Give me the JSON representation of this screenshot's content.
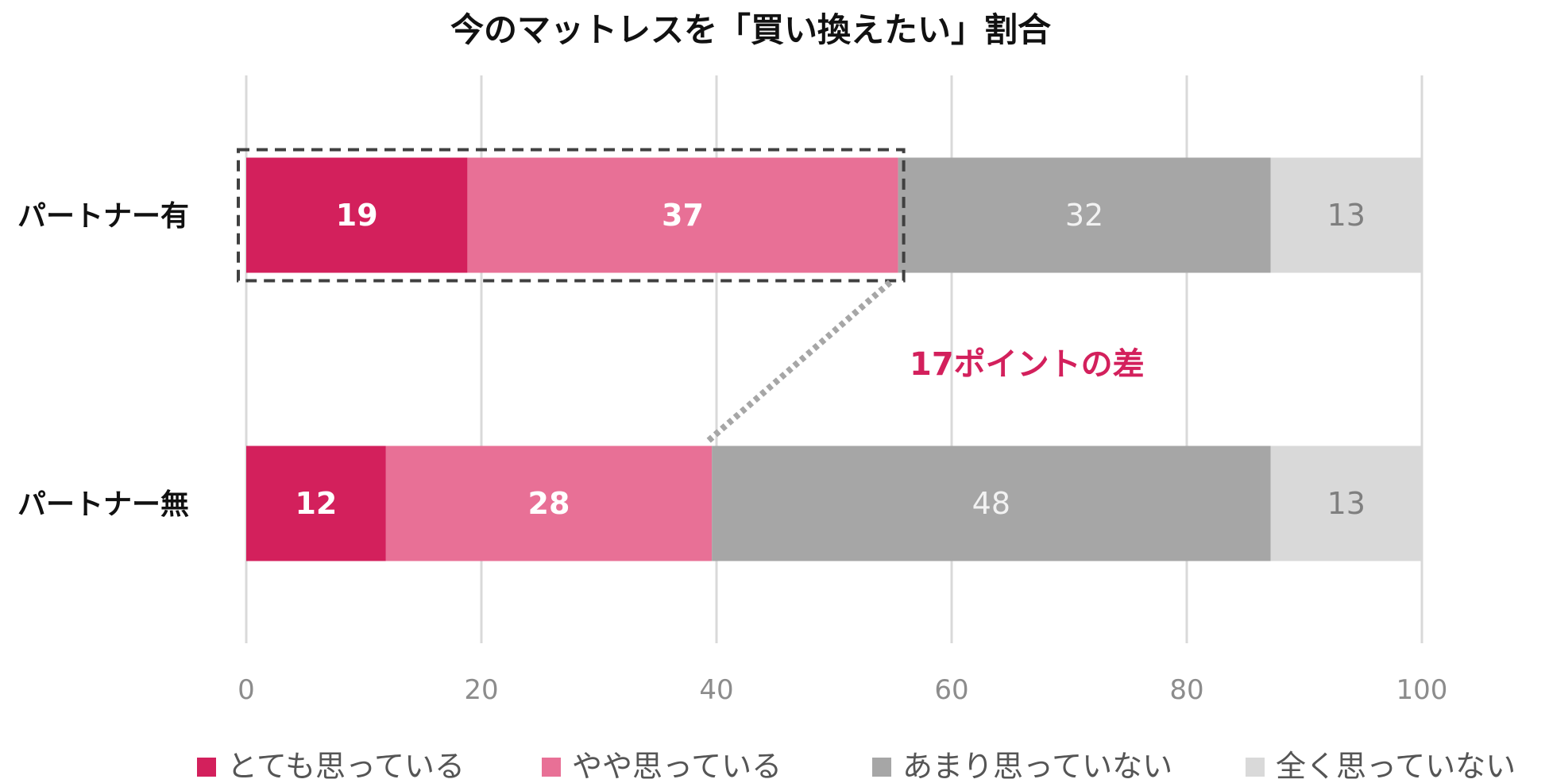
{
  "chart_data": {
    "type": "bar",
    "orientation": "horizontal",
    "stacked": true,
    "title": "今のマットレスを「買い換えたい」割合",
    "categories": [
      "パートナー有",
      "パートナー無"
    ],
    "series": [
      {
        "name": "とても思っている",
        "color": "#d3205c",
        "values": [
          19,
          12
        ]
      },
      {
        "name": "やや思っている",
        "color": "#e87096",
        "values": [
          37,
          28
        ]
      },
      {
        "name": "あまり思っていない",
        "color": "#a6a6a6",
        "values": [
          32,
          48
        ]
      },
      {
        "name": "全く思っていない",
        "color": "#d9d9d9",
        "values": [
          13,
          13
        ]
      }
    ],
    "xlim": [
      0,
      100
    ],
    "xticks": [
      0,
      20,
      40,
      60,
      80,
      100
    ],
    "grid": true,
    "legend_position": "bottom",
    "annotation": {
      "text": "17ポイントの差",
      "color": "#d3205c"
    }
  }
}
